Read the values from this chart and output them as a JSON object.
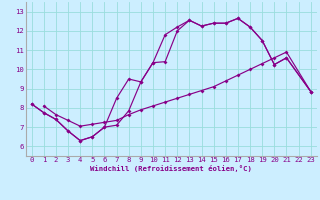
{
  "bg_color": "#cceeff",
  "grid_color": "#99dddd",
  "line_color": "#880088",
  "xlabel": "Windchill (Refroidissement éolien,°C)",
  "xlim": [
    -0.5,
    23.5
  ],
  "ylim": [
    5.5,
    13.5
  ],
  "line1_x": [
    0,
    1,
    2,
    3,
    4,
    5,
    6,
    7,
    8,
    9,
    10,
    11,
    12,
    13,
    14,
    15,
    16,
    17,
    18,
    19,
    20,
    21,
    23
  ],
  "line1_y": [
    8.2,
    7.75,
    7.4,
    6.8,
    6.3,
    6.5,
    7.0,
    7.1,
    7.85,
    9.35,
    10.35,
    11.8,
    12.2,
    12.55,
    12.25,
    12.4,
    12.4,
    12.65,
    12.2,
    11.5,
    10.25,
    10.6,
    8.85
  ],
  "line2_x": [
    0,
    1,
    2,
    3,
    4,
    5,
    6,
    7,
    8,
    9,
    10,
    11,
    12,
    13,
    14,
    15,
    16,
    17,
    18,
    19,
    20,
    21,
    23
  ],
  "line2_y": [
    8.2,
    7.75,
    7.4,
    6.8,
    6.3,
    6.5,
    7.0,
    8.5,
    9.5,
    9.35,
    10.35,
    10.4,
    12.0,
    12.55,
    12.25,
    12.4,
    12.4,
    12.65,
    12.2,
    11.5,
    10.25,
    10.6,
    8.85
  ],
  "line3_x": [
    1,
    2,
    3,
    4,
    5,
    6,
    7,
    8,
    9,
    10,
    11,
    12,
    13,
    14,
    15,
    16,
    17,
    18,
    19,
    20,
    21,
    23
  ],
  "line3_y": [
    8.1,
    7.65,
    7.35,
    7.05,
    7.15,
    7.25,
    7.35,
    7.65,
    7.9,
    8.1,
    8.3,
    8.5,
    8.7,
    8.9,
    9.1,
    9.4,
    9.7,
    10.0,
    10.3,
    10.6,
    10.9,
    8.85
  ]
}
